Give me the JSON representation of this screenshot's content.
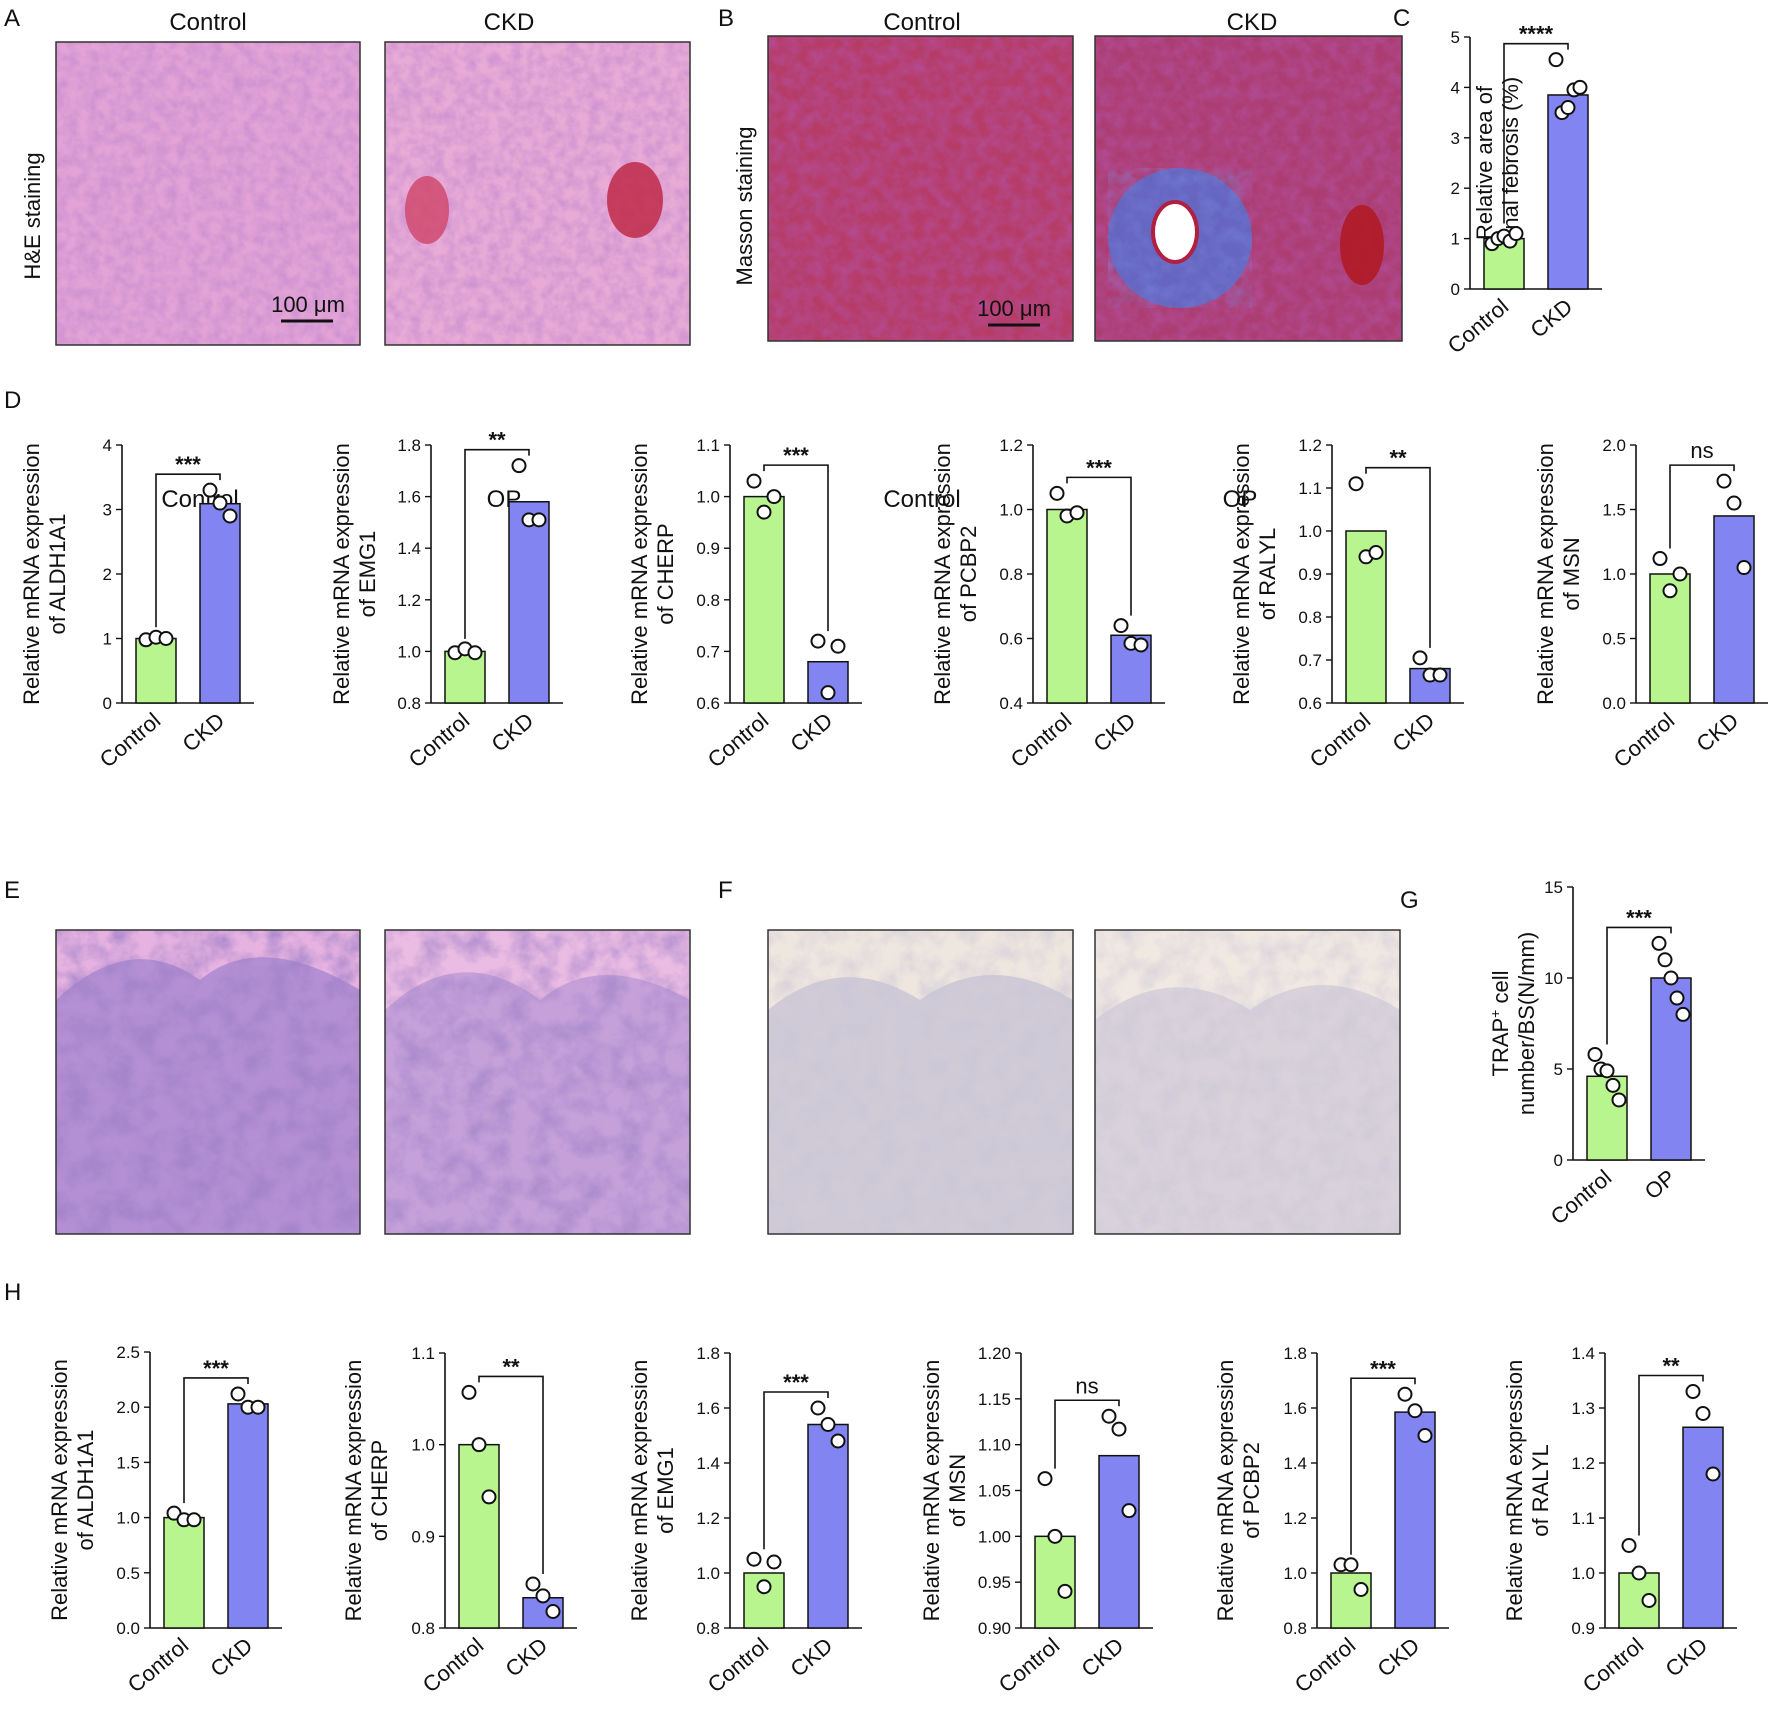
{
  "panel_labels": {
    "a": "A",
    "b": "B",
    "c": "C",
    "d": "D",
    "e": "E",
    "f": "F",
    "g": "G",
    "h": "H"
  },
  "micrographs": {
    "a": {
      "row_label": "H&E staining",
      "titles": [
        "Control",
        "CKD"
      ],
      "scalebar": "100 μm"
    },
    "b": {
      "row_label": "Masson staining",
      "titles": [
        "Control",
        "CKD"
      ],
      "scalebar": "100 μm"
    },
    "e": {
      "titles": [
        "Control",
        "OP"
      ]
    },
    "f": {
      "titles": [
        "Control",
        "OP"
      ]
    }
  },
  "colors": {
    "control": "#b8f58e",
    "treatment": "#8284f2",
    "outline": "#111111",
    "background": "#ffffff"
  },
  "chart_data": [
    {
      "id": "c",
      "type": "bar",
      "categories": [
        "Control",
        "CKD"
      ],
      "values": [
        1.0,
        3.85
      ],
      "points": [
        [
          0.9,
          1.0,
          1.05,
          0.95,
          1.1
        ],
        [
          4.55,
          3.5,
          3.6,
          3.95,
          4.0
        ]
      ],
      "ylabel_lines": [
        "Relative area of",
        "renal febrosis (%)"
      ],
      "ylim": [
        0,
        5
      ],
      "yticks": [
        "0",
        "1",
        "2",
        "3",
        "4",
        "5"
      ],
      "significance": "****"
    },
    {
      "id": "d1",
      "type": "bar",
      "categories": [
        "Control",
        "CKD"
      ],
      "values": [
        1.0,
        3.09
      ],
      "points": [
        [
          0.98,
          1.02,
          1.0
        ],
        [
          3.3,
          3.1,
          2.9
        ]
      ],
      "ylabel_lines": [
        "Relative mRNA expression",
        "of ALDH1A1"
      ],
      "ylim": [
        0,
        4
      ],
      "yticks": [
        "0",
        "1",
        "2",
        "3",
        "4"
      ],
      "significance": "***"
    },
    {
      "id": "d2",
      "type": "bar",
      "categories": [
        "Control",
        "CKD"
      ],
      "values": [
        1.0,
        1.58
      ],
      "points": [
        [
          0.995,
          1.01,
          0.995
        ],
        [
          1.72,
          1.51,
          1.51
        ]
      ],
      "ylabel_lines": [
        "Relative mRNA expression",
        "of EMG1"
      ],
      "ylim": [
        0.8,
        1.8
      ],
      "yticks": [
        "0.8",
        "1.0",
        "1.2",
        "1.4",
        "1.6",
        "1.8"
      ],
      "significance": "**"
    },
    {
      "id": "d3",
      "type": "bar",
      "categories": [
        "Control",
        "CKD"
      ],
      "values": [
        1.0,
        0.68
      ],
      "points": [
        [
          1.03,
          0.97,
          1.0
        ],
        [
          0.72,
          0.62,
          0.71
        ]
      ],
      "ylabel_lines": [
        "Relative mRNA expression",
        "of CHERP"
      ],
      "ylim": [
        0.6,
        1.1
      ],
      "yticks": [
        "0.6",
        "0.7",
        "0.8",
        "0.9",
        "1.0",
        "1.1"
      ],
      "significance": "***"
    },
    {
      "id": "d4",
      "type": "bar",
      "categories": [
        "Control",
        "CKD"
      ],
      "values": [
        1.0,
        0.61
      ],
      "points": [
        [
          1.05,
          0.98,
          0.99
        ],
        [
          0.64,
          0.585,
          0.58
        ]
      ],
      "ylabel_lines": [
        "Relative mRNA expression",
        "of PCBP2"
      ],
      "ylim": [
        0.4,
        1.2
      ],
      "yticks": [
        "0.4",
        "0.6",
        "0.8",
        "1.0",
        "1.2"
      ],
      "significance": "***"
    },
    {
      "id": "d5",
      "type": "bar",
      "categories": [
        "Control",
        "CKD"
      ],
      "values": [
        1.0,
        0.68
      ],
      "points": [
        [
          1.11,
          0.94,
          0.95
        ],
        [
          0.705,
          0.665,
          0.665
        ]
      ],
      "ylabel_lines": [
        "Relative mRNA expression",
        "of RALYL"
      ],
      "ylim": [
        0.6,
        1.2
      ],
      "yticks": [
        "0.6",
        "0.7",
        "0.8",
        "0.9",
        "1.0",
        "1.1",
        "1.2"
      ],
      "significance": "**"
    },
    {
      "id": "d6",
      "type": "bar",
      "categories": [
        "Control",
        "CKD"
      ],
      "values": [
        1.0,
        1.45
      ],
      "points": [
        [
          1.12,
          0.87,
          1.0
        ],
        [
          1.72,
          1.55,
          1.05
        ]
      ],
      "ylabel_lines": [
        "Relative mRNA expression",
        "of MSN"
      ],
      "ylim": [
        0,
        2
      ],
      "yticks": [
        "0.0",
        "0.5",
        "1.0",
        "1.5",
        "2.0"
      ],
      "significance": "ns"
    },
    {
      "id": "g",
      "type": "bar",
      "categories": [
        "Control",
        "OP"
      ],
      "values": [
        4.6,
        10.0
      ],
      "points": [
        [
          5.8,
          5.0,
          4.9,
          4.1,
          3.3
        ],
        [
          11.9,
          11.0,
          10.0,
          8.9,
          8.0
        ]
      ],
      "ylabel_lines": [
        "TRAP",
        "+",
        " cell",
        "number/BS(N/mm)"
      ],
      "ylim": [
        0,
        15
      ],
      "yticks": [
        "0",
        "5",
        "10",
        "15"
      ],
      "significance": "***"
    },
    {
      "id": "h1",
      "type": "bar",
      "categories": [
        "Control",
        "CKD"
      ],
      "values": [
        1.0,
        2.03
      ],
      "points": [
        [
          1.04,
          0.98,
          0.98
        ],
        [
          2.12,
          2.0,
          2.0
        ]
      ],
      "ylabel_lines": [
        "Relative mRNA expression",
        "of ALDH1A1"
      ],
      "ylim": [
        0,
        2.5
      ],
      "yticks": [
        "0.0",
        "0.5",
        "1.0",
        "1.5",
        "2.0",
        "2.5"
      ],
      "significance": "***"
    },
    {
      "id": "h2",
      "type": "bar",
      "categories": [
        "Control",
        "CKD"
      ],
      "values": [
        1.0,
        0.833
      ],
      "points": [
        [
          1.057,
          1.0,
          0.943
        ],
        [
          0.848,
          0.835,
          0.818
        ]
      ],
      "ylabel_lines": [
        "Relative mRNA expression",
        "of CHERP"
      ],
      "ylim": [
        0.8,
        1.1
      ],
      "yticks": [
        "0.8",
        "0.9",
        "1.0",
        "1.1"
      ],
      "significance": "**"
    },
    {
      "id": "h3",
      "type": "bar",
      "categories": [
        "Control",
        "CKD"
      ],
      "values": [
        1.0,
        1.54
      ],
      "points": [
        [
          1.05,
          0.95,
          1.04
        ],
        [
          1.6,
          1.54,
          1.48
        ]
      ],
      "ylabel_lines": [
        "Relative mRNA expression",
        "of EMG1"
      ],
      "ylim": [
        0.8,
        1.8
      ],
      "yticks": [
        "0.8",
        "1.0",
        "1.2",
        "1.4",
        "1.6",
        "1.8"
      ],
      "significance": "***"
    },
    {
      "id": "h4",
      "type": "bar",
      "categories": [
        "Control",
        "CKD"
      ],
      "values": [
        1.0,
        1.088
      ],
      "points": [
        [
          1.063,
          1.0,
          0.94
        ],
        [
          1.131,
          1.117,
          1.028
        ]
      ],
      "ylabel_lines": [
        "Relative mRNA expression",
        "of MSN"
      ],
      "ylim": [
        0.9,
        1.2
      ],
      "yticks": [
        "0.90",
        "0.95",
        "1.00",
        "1.05",
        "1.10",
        "1.15",
        "1.20"
      ],
      "significance": "ns"
    },
    {
      "id": "h5",
      "type": "bar",
      "categories": [
        "Control",
        "CKD"
      ],
      "values": [
        1.0,
        1.585
      ],
      "points": [
        [
          1.03,
          1.03,
          0.94
        ],
        [
          1.65,
          1.59,
          1.5
        ]
      ],
      "ylabel_lines": [
        "Relative mRNA expression",
        "of PCBP2"
      ],
      "ylim": [
        0.8,
        1.8
      ],
      "yticks": [
        "0.8",
        "1.0",
        "1.2",
        "1.4",
        "1.6",
        "1.8"
      ],
      "significance": "***"
    },
    {
      "id": "h6",
      "type": "bar",
      "categories": [
        "Control",
        "CKD"
      ],
      "values": [
        1.0,
        1.265
      ],
      "points": [
        [
          1.05,
          1.0,
          0.95
        ],
        [
          1.33,
          1.29,
          1.18
        ]
      ],
      "ylabel_lines": [
        "Relative mRNA expression",
        "of RALYL"
      ],
      "ylim": [
        0.9,
        1.4
      ],
      "yticks": [
        "0.9",
        "1.0",
        "1.1",
        "1.2",
        "1.3",
        "1.4"
      ],
      "significance": "**"
    }
  ]
}
